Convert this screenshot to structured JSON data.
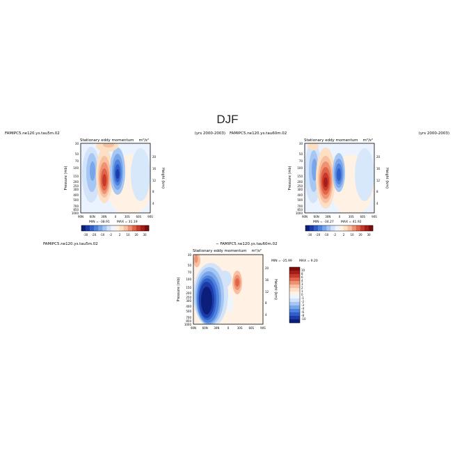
{
  "figure": {
    "title": "DJF"
  },
  "panels": [
    {
      "case_label": "FAMIPC5.ne120.ys.tau5m.02",
      "years": "(yrs 2000-2003)",
      "title": "Stationary eddy momentum",
      "units": "m²/s²",
      "min_label": "MIN = -38.91",
      "max_label": "MAX = 31.19"
    },
    {
      "case_label": "FAMIPC5.ne120.ys.tau60m.02",
      "years": "(yrs 2000-2003)",
      "title": "Stationary eddy momentum",
      "units": "m²/s²",
      "min_label": "MIN = -34.27",
      "max_label": "MAX = 41.92"
    },
    {
      "case_label": "FAMIPC5.ne120.ys.tau5m.02",
      "diff_label": "− FAMIPC5.ne120.ys.tau60m.02",
      "title": "Stationary eddy momentum",
      "units": "m²/s²",
      "min_label": "MIN = -25.99",
      "max_label": "MAX = 9.20"
    }
  ],
  "axes": {
    "y_label": "Pressure (mb)",
    "y2_label": "Height (km)"
  },
  "chart_data": [
    {
      "type": "heatmap",
      "title": "Stationary eddy momentum",
      "xlabel": "",
      "ylabel": "Pressure (mb)",
      "y2label": "Height (km)",
      "x_ticks": [
        "90N",
        "60N",
        "30N",
        "0",
        "30S",
        "60S",
        "90S"
      ],
      "y_ticks": [
        "30",
        "50",
        "70",
        "100",
        "150",
        "200",
        "250",
        "300",
        "400",
        "500",
        "700",
        "850",
        "1000"
      ],
      "y2_ticks": [
        "20",
        "16",
        "12",
        "8",
        "4"
      ],
      "xlim": [
        90,
        -90
      ],
      "ylim": [
        1000,
        30
      ],
      "colorbar_labels": [
        "-30",
        "-20",
        "-10",
        "-2",
        "2",
        "10",
        "20",
        "30"
      ],
      "min": -38.91,
      "max": 31.19
    },
    {
      "type": "heatmap",
      "title": "Stationary eddy momentum",
      "xlabel": "",
      "ylabel": "Pressure (mb)",
      "y2label": "Height (km)",
      "x_ticks": [
        "90N",
        "60N",
        "30N",
        "0",
        "30S",
        "60S",
        "90S"
      ],
      "y_ticks": [
        "30",
        "50",
        "70",
        "100",
        "150",
        "200",
        "250",
        "300",
        "400",
        "500",
        "700",
        "850",
        "1000"
      ],
      "y2_ticks": [
        "20",
        "16",
        "12",
        "8",
        "4"
      ],
      "xlim": [
        90,
        -90
      ],
      "ylim": [
        1000,
        30
      ],
      "colorbar_labels": [
        "-30",
        "-20",
        "-10",
        "-2",
        "2",
        "10",
        "20",
        "30"
      ],
      "min": -34.27,
      "max": 41.92
    },
    {
      "type": "heatmap",
      "title": "Stationary eddy momentum",
      "xlabel": "",
      "ylabel": "Pressure (mb)",
      "y2label": "Height (km)",
      "x_ticks": [
        "90N",
        "60N",
        "30N",
        "0",
        "30S",
        "60S",
        "90S"
      ],
      "y_ticks": [
        "30",
        "50",
        "70",
        "100",
        "150",
        "200",
        "250",
        "300",
        "400",
        "500",
        "700",
        "850",
        "1000"
      ],
      "y2_ticks": [
        "20",
        "16",
        "12",
        "8",
        "4"
      ],
      "xlim": [
        90,
        -90
      ],
      "ylim": [
        1000,
        30
      ],
      "colorbar_labels": [
        "10",
        "8",
        "6",
        "4",
        "3",
        "2",
        "1",
        "0",
        "-1",
        "-2",
        "-3",
        "-4",
        "-6",
        "-8",
        "-10"
      ],
      "min": -25.99,
      "max": 9.2
    }
  ],
  "colors": {
    "palette": [
      "#0a1e7a",
      "#1c3aa8",
      "#2f5ec8",
      "#4f82dc",
      "#79a6ea",
      "#a6c6f3",
      "#d2e3fa",
      "#edf5ff",
      "#fff1e3",
      "#fde0c4",
      "#f8c0a0",
      "#ef9272",
      "#e06548",
      "#c7392a",
      "#a61d18",
      "#7d0c0c"
    ],
    "diff_palette": [
      "#7d0c0c",
      "#a61d18",
      "#c7392a",
      "#e06548",
      "#ef9272",
      "#f8c0a0",
      "#fde0c4",
      "#fff1e3",
      "#edf5ff",
      "#d2e3fa",
      "#a6c6f3",
      "#79a6ea",
      "#4f82dc",
      "#2f5ec8",
      "#1c3aa8",
      "#0a1e7a"
    ]
  }
}
